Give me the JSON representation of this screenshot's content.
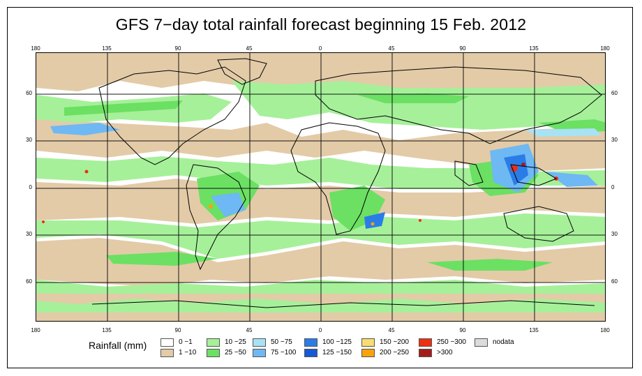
{
  "title": "GFS 7−day total rainfall forecast beginning 15 Feb. 2012",
  "axes": {
    "lon_ticks": [
      "180",
      "135",
      "90",
      "45",
      "0",
      "45",
      "90",
      "135",
      "180"
    ],
    "lat_ticks": [
      "60",
      "30",
      "0",
      "30",
      "60"
    ]
  },
  "legend": {
    "title": "Rainfall (mm)",
    "items": [
      {
        "label": "0 −1",
        "color": "#ffffff"
      },
      {
        "label": "1 −10",
        "color": "#e3cba8"
      },
      {
        "label": "10 −25",
        "color": "#a6f09a"
      },
      {
        "label": "25 −50",
        "color": "#6be063"
      },
      {
        "label": "50 −75",
        "color": "#a8e2f5"
      },
      {
        "label": "75 −100",
        "color": "#6eb8f4"
      },
      {
        "label": "100 −125",
        "color": "#2a7de6"
      },
      {
        "label": "125 −150",
        "color": "#1559d6"
      },
      {
        "label": "150 −200",
        "color": "#f8dc70"
      },
      {
        "label": "200 −250",
        "color": "#f9a30c"
      },
      {
        "label": "250 −300",
        "color": "#ec3012"
      },
      {
        "label": ">300",
        "color": "#a41c1a"
      },
      {
        "label": "nodata",
        "color": "#dcdcdc"
      }
    ]
  }
}
